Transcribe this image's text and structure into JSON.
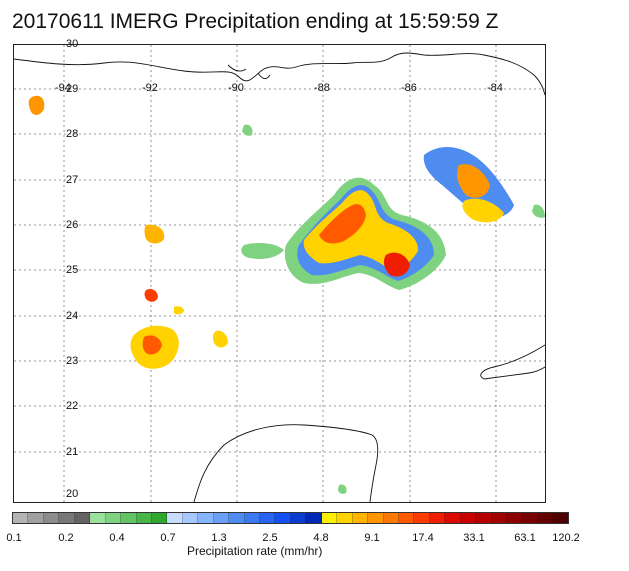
{
  "title": "20170611 IMERG Precipitation ending at 15:59:59 Z",
  "map": {
    "lat_labels": [
      "30",
      "29",
      "28",
      "27",
      "26",
      "25",
      "24",
      "23",
      "22",
      "21",
      "20"
    ],
    "lon_labels": [
      "-94",
      "-92",
      "-90",
      "-88",
      "-86",
      "-84"
    ],
    "grid": true
  },
  "colorbar": {
    "ticks": [
      "0.1",
      "0.2",
      "0.4",
      "0.7",
      "1.3",
      "2.5",
      "4.8",
      "9.1",
      "17.4",
      "33.1",
      "63.1",
      "120.2"
    ],
    "label": "Precipitation rate (mm/hr)",
    "colors": [
      "#b4b4b4",
      "#a0a0a0",
      "#8c8c8c",
      "#787878",
      "#646464",
      "#9be09b",
      "#7fd27f",
      "#63c463",
      "#47b647",
      "#2ea82e",
      "#c8dcff",
      "#a6c8ff",
      "#86b4ff",
      "#6aa0f5",
      "#4f8cf0",
      "#3c78f0",
      "#2864f0",
      "#1450f0",
      "#0a3cd2",
      "#0028b4",
      "#fff000",
      "#ffd200",
      "#ffb400",
      "#ff9600",
      "#ff7800",
      "#ff5a00",
      "#ff3c00",
      "#f01e00",
      "#dc0a00",
      "#c80000",
      "#b40000",
      "#a00000",
      "#8c0000",
      "#780000",
      "#640000",
      "#500000"
    ]
  }
}
